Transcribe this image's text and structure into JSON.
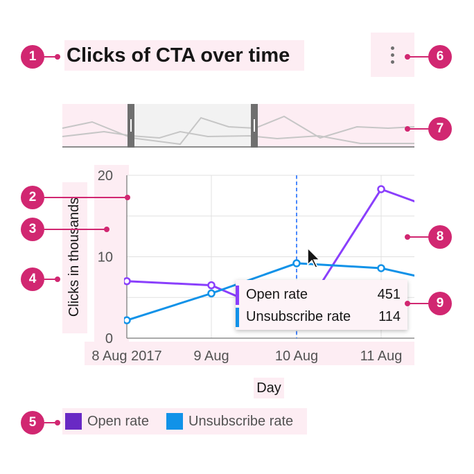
{
  "title": "Clicks of CTA over time",
  "menu": {
    "icon": "overflow-menu-vertical-icon"
  },
  "annotations": [
    "1",
    "2",
    "3",
    "4",
    "5",
    "6",
    "7",
    "8",
    "9"
  ],
  "colors": {
    "open_rate": "#8a3ffc",
    "unsubscribe_rate": "#1192e8",
    "open_rate_legend": "#6929c4",
    "marker": "#d12771",
    "highlight": "#fdedf3"
  },
  "tooltip": {
    "rows": [
      {
        "label": "Open rate",
        "value": "451"
      },
      {
        "label": "Unsubscribe rate",
        "value": "114"
      }
    ]
  },
  "legend": [
    {
      "label": "Open rate"
    },
    {
      "label": "Unsubscribe rate"
    }
  ],
  "chart_data": {
    "type": "line",
    "title": "Clicks of CTA over time",
    "xlabel": "Day",
    "ylabel": "Clicks in thousands",
    "ylim": [
      0,
      20
    ],
    "yticks": [
      0,
      10,
      20
    ],
    "xticks": [
      "8 Aug 2017",
      "9 Aug",
      "10 Aug",
      "11 Aug"
    ],
    "grid": true,
    "legend_position": "bottom-left",
    "hover_x": "10 Aug",
    "x": [
      "8 Aug 2017",
      "9 Aug",
      "10 Aug",
      "11 Aug"
    ],
    "series": [
      {
        "name": "Open rate",
        "values": [
          7.0,
          6.5,
          2.0,
          18.3
        ]
      },
      {
        "name": "Unsubscribe rate",
        "values": [
          2.2,
          5.5,
          9.2,
          8.6
        ]
      }
    ],
    "zoom_bar": {
      "selected_range": [
        "8 Aug 2017",
        "9 Aug"
      ]
    }
  }
}
